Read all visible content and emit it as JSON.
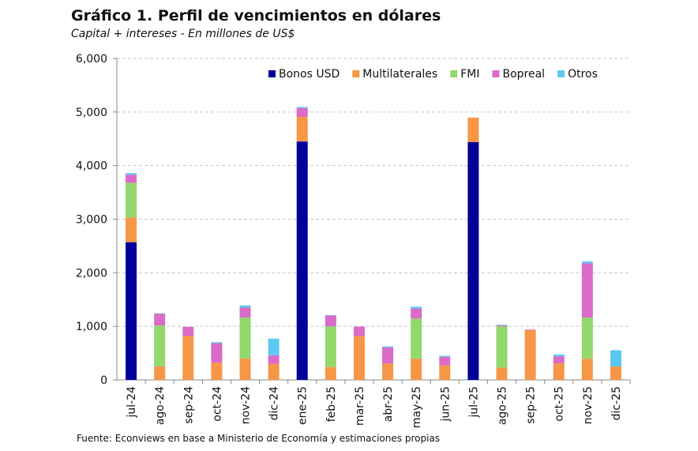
{
  "chart_data": {
    "type": "bar",
    "stacked": true,
    "title": "Gráfico 1. Perfil de vencimientos en dólares",
    "subtitle": "Capital + intereses - En millones de US$",
    "source": "Fuente: Econviews en base a Ministerio de Economía y estimaciones propias",
    "ylim": [
      0,
      6000
    ],
    "yticks": [
      0,
      1000,
      2000,
      3000,
      4000,
      5000,
      6000
    ],
    "ytick_labels": [
      "0",
      "1,000",
      "2,000",
      "3,000",
      "4,000",
      "5,000",
      "6,000"
    ],
    "grid": true,
    "legend_position": "top",
    "categories": [
      "jul-24",
      "ago-24",
      "sep-24",
      "oct-24",
      "nov-24",
      "dic-24",
      "ene-25",
      "feb-25",
      "mar-25",
      "abr-25",
      "may-25",
      "jun-25",
      "jul-25",
      "ago-25",
      "sep-25",
      "oct-25",
      "nov-25",
      "dic-25"
    ],
    "series": [
      {
        "name": "Bonos USD",
        "color": "#000099",
        "values": [
          2570,
          0,
          0,
          0,
          0,
          0,
          4450,
          0,
          0,
          0,
          0,
          0,
          4440,
          0,
          0,
          0,
          0,
          0
        ]
      },
      {
        "name": "Multilaterales",
        "color": "#F79646",
        "values": [
          460,
          250,
          820,
          320,
          400,
          300,
          460,
          240,
          820,
          305,
          400,
          270,
          455,
          230,
          930,
          310,
          395,
          250
        ]
      },
      {
        "name": "FMI",
        "color": "#92D86C",
        "values": [
          650,
          765,
          0,
          0,
          765,
          0,
          0,
          760,
          0,
          0,
          745,
          0,
          0,
          770,
          0,
          0,
          770,
          0
        ]
      },
      {
        "name": "Bopreal",
        "color": "#DA6BC8",
        "values": [
          150,
          220,
          170,
          365,
          185,
          160,
          165,
          200,
          175,
          300,
          190,
          160,
          0,
          20,
          10,
          130,
          1010,
          0
        ]
      },
      {
        "name": "Otros",
        "color": "#5BC8F0",
        "values": [
          30,
          10,
          0,
          20,
          40,
          310,
          20,
          10,
          0,
          20,
          30,
          20,
          0,
          10,
          0,
          35,
          35,
          305
        ]
      }
    ]
  }
}
